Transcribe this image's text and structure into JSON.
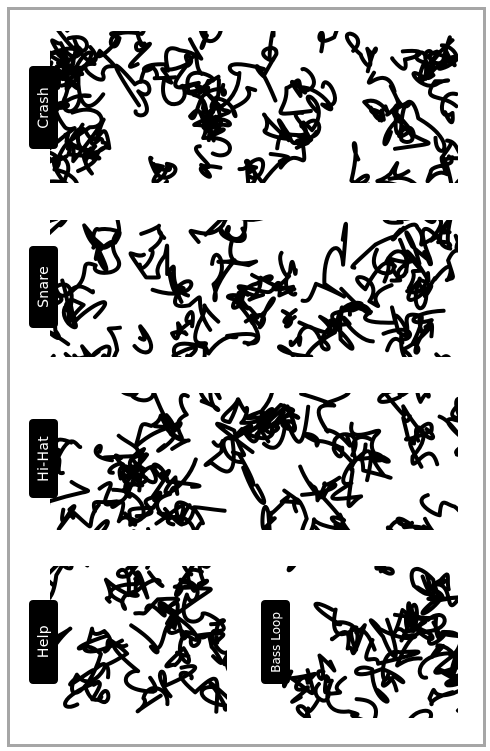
{
  "pads": [
    {
      "id": "crash",
      "label": "Crash",
      "seed": 11
    },
    {
      "id": "snare",
      "label": "Snare",
      "seed": 23
    },
    {
      "id": "hi-hat",
      "label": "Hi-Hat",
      "seed": 37
    },
    {
      "id": "help",
      "label": "Help",
      "seed": 53
    },
    {
      "id": "bass-loop",
      "label": "Bass Loop",
      "seed": 71
    }
  ],
  "colors": {
    "frame": "#a6a6a6",
    "tab": "#000000",
    "tab_text": "#ffffff",
    "pattern": "#000000"
  }
}
